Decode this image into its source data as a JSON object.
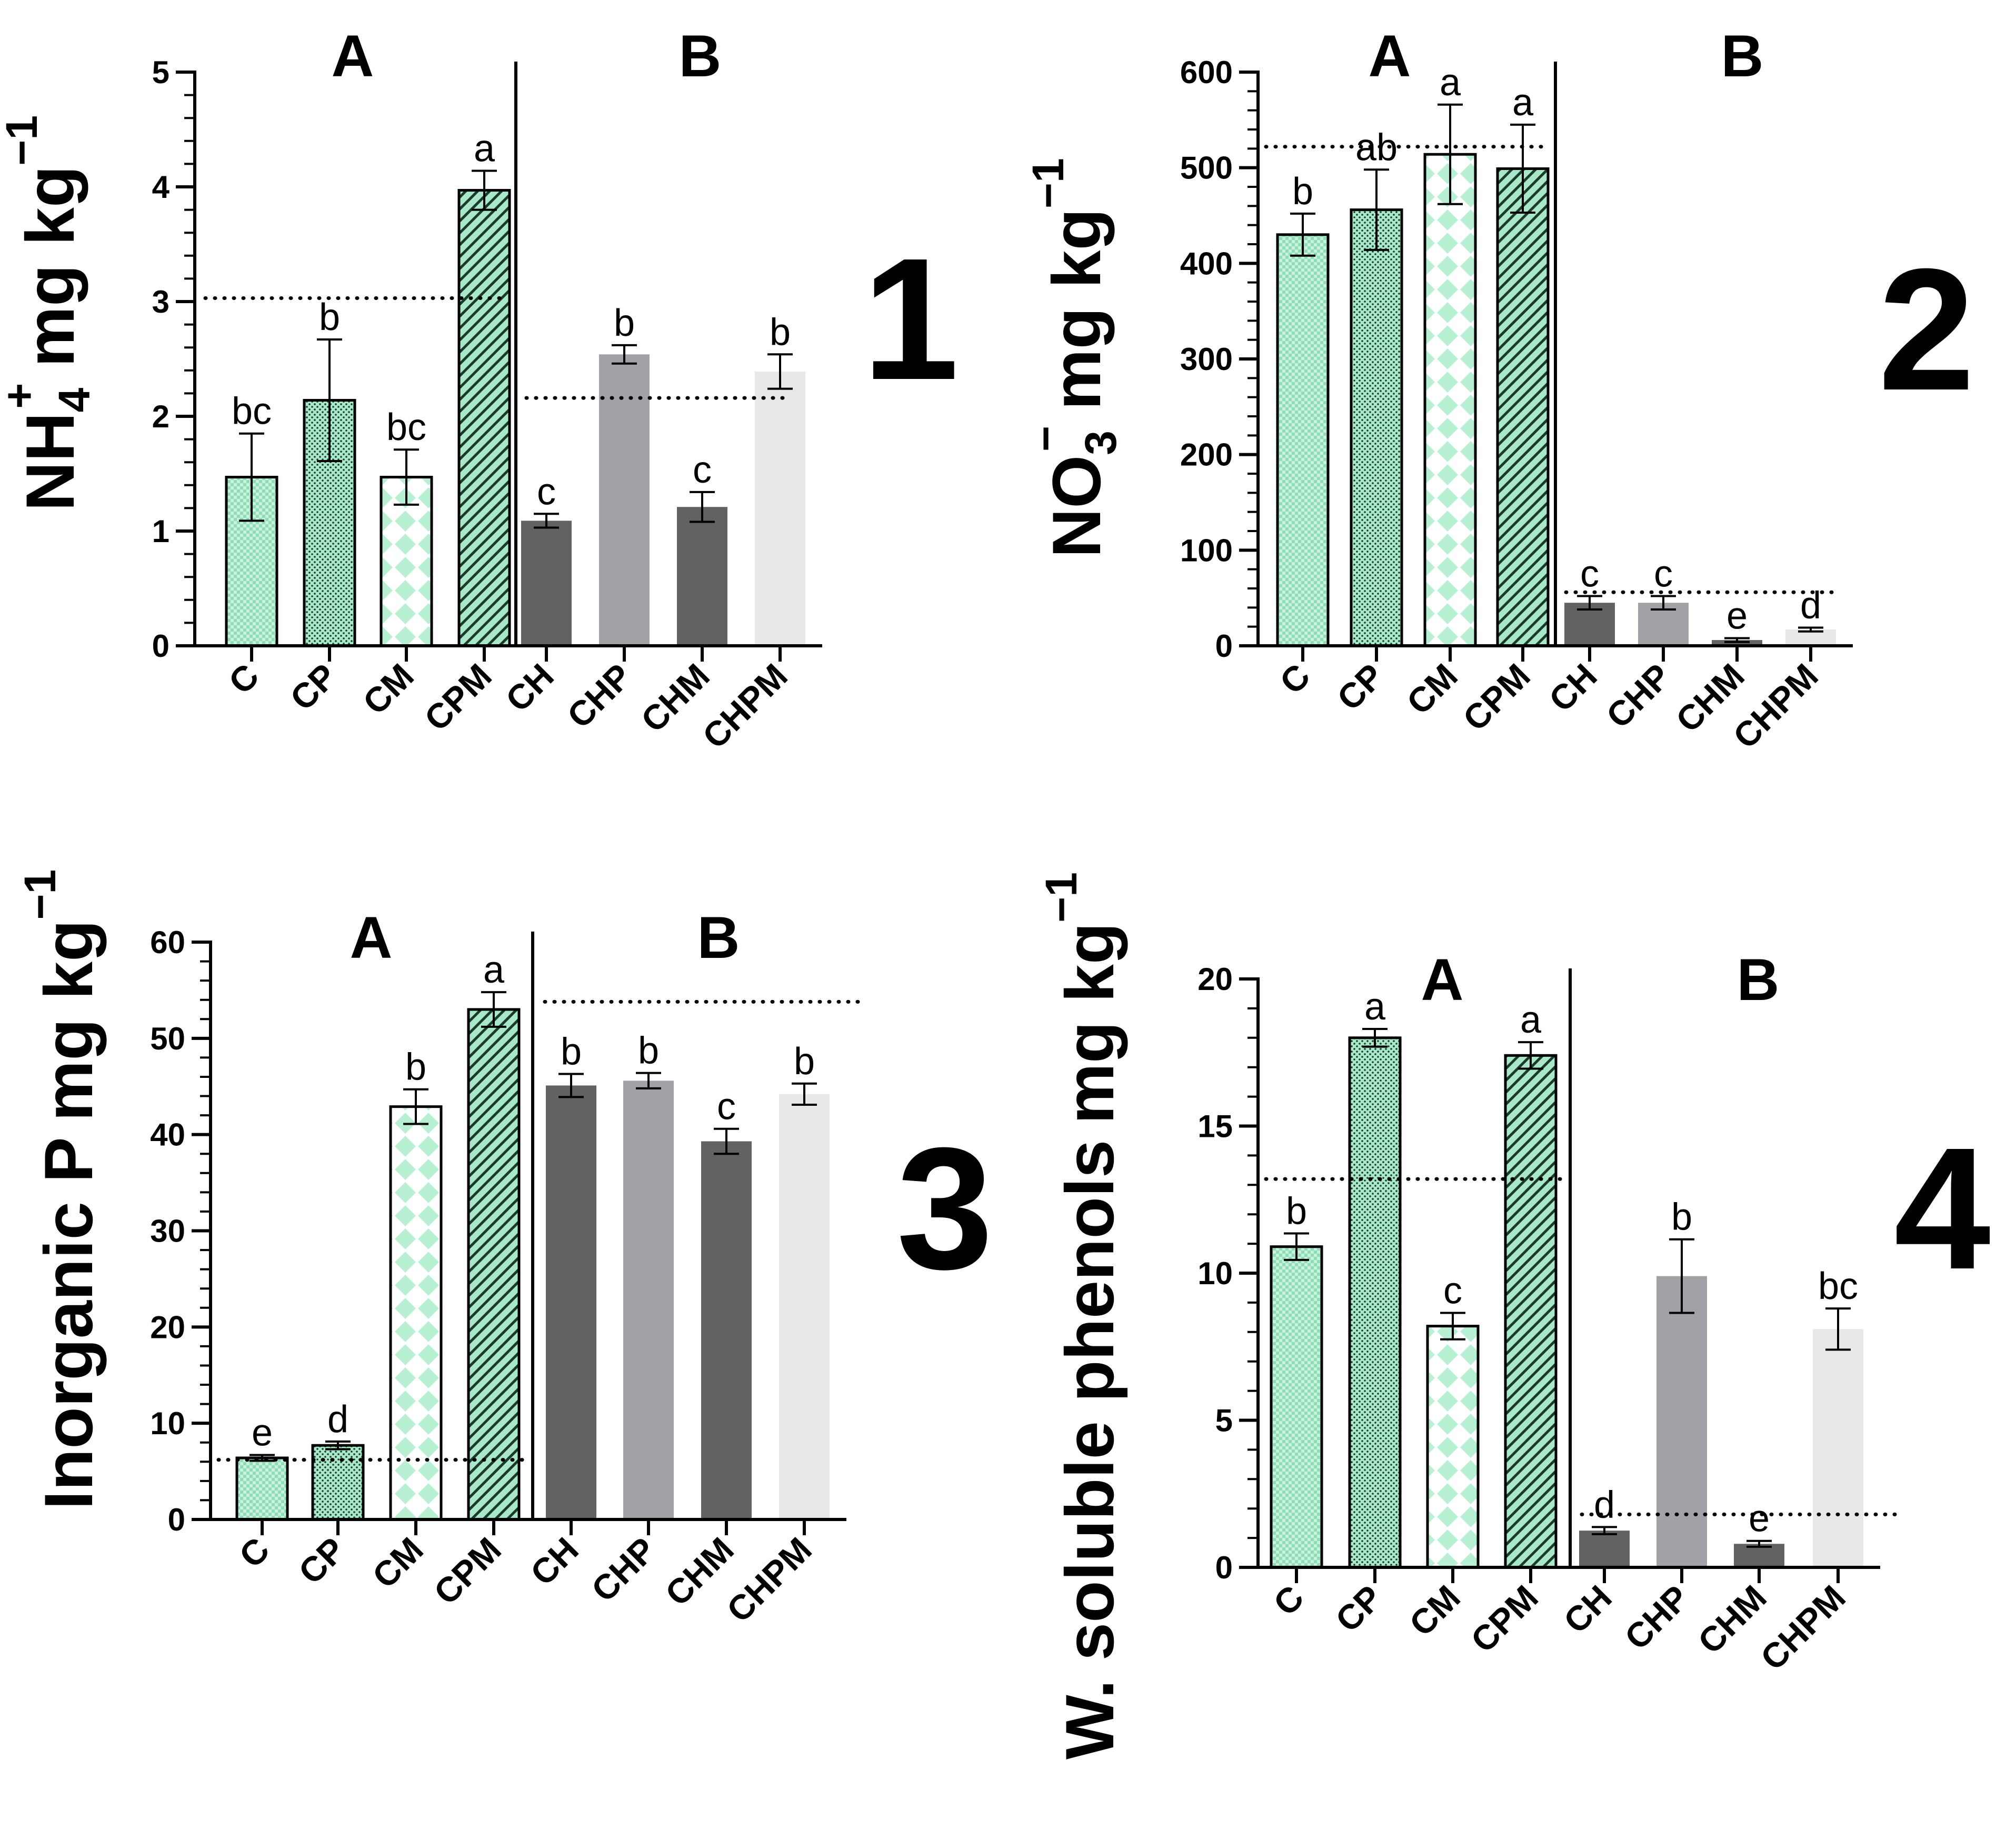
{
  "colors": {
    "green_fill": "#c6f2dc",
    "green_dark": "#a8e8c9",
    "gray_dark": "#626262",
    "gray_mid": "#a2a2a6",
    "gray_light": "#e8e8e8",
    "axis": "#000000"
  },
  "chart_data": [
    {
      "type": "bar",
      "panel_label": "1",
      "ylabel_main": "NH",
      "ylabel_sub": "4",
      "ylabel_sup": "+",
      "ylabel_unit": "mg kg",
      "ylabel_unit_sup": "−1",
      "ylim": [
        0,
        5
      ],
      "yticks": [
        0,
        1,
        2,
        3,
        4,
        5
      ],
      "ytick_labels": [
        "0",
        "1",
        "2",
        "3",
        "4",
        "5"
      ],
      "categories": [
        "C",
        "CP",
        "CM",
        "CPM",
        "CH",
        "CHP",
        "CHM",
        "CHPM"
      ],
      "values": [
        1.47,
        2.14,
        1.47,
        3.97,
        1.09,
        2.54,
        1.21,
        2.39
      ],
      "errors": [
        0.38,
        0.53,
        0.24,
        0.17,
        0.06,
        0.08,
        0.13,
        0.15
      ],
      "letters": [
        "bc",
        "b",
        "bc",
        "a",
        "c",
        "b",
        "c",
        "b"
      ],
      "group_labels": [
        "A",
        "B"
      ],
      "reference_lines": [
        3.03,
        2.16
      ]
    },
    {
      "type": "bar",
      "panel_label": "2",
      "ylabel_main": "NO",
      "ylabel_sub": "3",
      "ylabel_sup": "−",
      "ylabel_unit": "mg kg",
      "ylabel_unit_sup": "−1",
      "ylim": [
        0,
        600
      ],
      "yticks": [
        0,
        100,
        200,
        300,
        400,
        500,
        600
      ],
      "ytick_labels": [
        "0",
        "100",
        "200",
        "300",
        "400",
        "500",
        "600"
      ],
      "categories": [
        "C",
        "CP",
        "CM",
        "CPM",
        "CH",
        "CHP",
        "CHM",
        "CHPM"
      ],
      "values": [
        430,
        456,
        514,
        499,
        45,
        45,
        6,
        17
      ],
      "errors": [
        22,
        42,
        52,
        46,
        7,
        7,
        2,
        2
      ],
      "letters": [
        "b",
        "ab",
        "a",
        "a",
        "c",
        "c",
        "e",
        "d"
      ],
      "group_labels": [
        "A",
        "B"
      ],
      "reference_lines": [
        522,
        56
      ]
    },
    {
      "type": "bar",
      "panel_label": "3",
      "ylabel_main": "Inorganic P",
      "ylabel_sub": "",
      "ylabel_sup": "",
      "ylabel_unit": "mg kg",
      "ylabel_unit_sup": "−1",
      "ylim": [
        0,
        60
      ],
      "yticks": [
        0,
        10,
        20,
        30,
        40,
        50,
        60
      ],
      "ytick_labels": [
        "0",
        "10",
        "20",
        "30",
        "40",
        "50",
        "60"
      ],
      "categories": [
        "C",
        "CP",
        "CM",
        "CPM",
        "CH",
        "CHP",
        "CHM",
        "CHPM"
      ],
      "values": [
        6.4,
        7.7,
        42.9,
        53.0,
        45.1,
        45.6,
        39.3,
        44.2
      ],
      "errors": [
        0.3,
        0.4,
        1.8,
        1.8,
        1.2,
        0.8,
        1.3,
        1.1
      ],
      "letters": [
        "e",
        "d",
        "b",
        "a",
        "b",
        "b",
        "c",
        "b"
      ],
      "group_labels": [
        "A",
        "B"
      ],
      "reference_lines": [
        6.2,
        53.8
      ]
    },
    {
      "type": "bar",
      "panel_label": "4",
      "ylabel_main": "W. soluble phenols",
      "ylabel_sub": "",
      "ylabel_sup": "",
      "ylabel_unit": "mg kg",
      "ylabel_unit_sup": "−1",
      "ylim": [
        0,
        20
      ],
      "yticks": [
        0,
        5,
        10,
        15,
        20
      ],
      "ytick_labels": [
        "0",
        "5",
        "10",
        "15",
        "20"
      ],
      "categories": [
        "C",
        "CP",
        "CM",
        "CPM",
        "CH",
        "CHP",
        "CHM",
        "CHPM"
      ],
      "values": [
        10.9,
        18.0,
        8.2,
        17.4,
        1.25,
        9.9,
        0.8,
        8.1
      ],
      "errors": [
        0.45,
        0.3,
        0.45,
        0.45,
        0.12,
        1.25,
        0.1,
        0.7
      ],
      "letters": [
        "b",
        "a",
        "c",
        "a",
        "d",
        "b",
        "e",
        "bc"
      ],
      "group_labels": [
        "A",
        "B"
      ],
      "reference_lines": [
        13.2,
        1.8
      ]
    }
  ]
}
